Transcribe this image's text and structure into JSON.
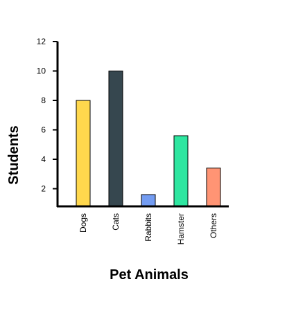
{
  "chart_data": {
    "type": "bar",
    "categories": [
      "Dogs",
      "Cats",
      "Rabbits",
      "Hamster",
      "Others"
    ],
    "values": [
      8,
      10,
      1.6,
      5.6,
      3.4
    ],
    "colors": [
      "#FFD84D",
      "#36474F",
      "#739CF2",
      "#2EE6A0",
      "#FF9474"
    ],
    "bar_stroke": "#000000",
    "xlabel": "Pet Animals",
    "ylabel": "Students",
    "ylim": [
      0.8,
      12
    ],
    "yticks": [
      "2",
      "4",
      "6",
      "8",
      "10",
      "12"
    ],
    "ytick_values": [
      2,
      4,
      6,
      8,
      10,
      12
    ],
    "grid": false,
    "legend": "none"
  }
}
